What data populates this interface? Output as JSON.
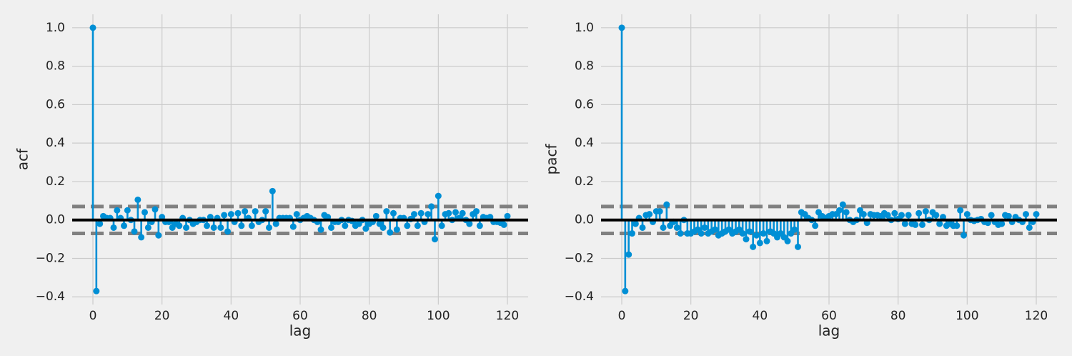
{
  "chart_data": [
    {
      "type": "stem",
      "ylabel": "acf",
      "xlabel": "lag",
      "color": "#008fd5",
      "grid": true,
      "bands": [
        -0.07,
        0.07
      ],
      "xlim": [
        -6,
        126
      ],
      "xticks": [
        0,
        20,
        40,
        60,
        80,
        100,
        120
      ],
      "ylim": [
        -0.44,
        1.07
      ],
      "yticks": [
        {
          "value": -0.4,
          "label": "−0.4"
        },
        {
          "value": -0.2,
          "label": "−0.2"
        },
        {
          "value": 0,
          "label": "0.0"
        },
        0.2,
        0.4,
        0.6,
        0.8,
        {
          "value": 1,
          "label": "1.0"
        }
      ],
      "x": [
        0,
        1,
        2,
        3,
        4,
        5,
        6,
        7,
        8,
        9,
        10,
        11,
        12,
        13,
        14,
        15,
        16,
        17,
        18,
        19,
        20,
        21,
        22,
        23,
        24,
        25,
        26,
        27,
        28,
        29,
        30,
        31,
        32,
        33,
        34,
        35,
        36,
        37,
        38,
        39,
        40,
        41,
        42,
        43,
        44,
        45,
        46,
        47,
        48,
        49,
        50,
        51,
        52,
        53,
        54,
        55,
        56,
        57,
        58,
        59,
        60,
        61,
        62,
        63,
        64,
        65,
        66,
        67,
        68,
        69,
        70,
        71,
        72,
        73,
        74,
        75,
        76,
        77,
        78,
        79,
        80,
        81,
        82,
        83,
        84,
        85,
        86,
        87,
        88,
        89,
        90,
        91,
        92,
        93,
        94,
        95,
        96,
        97,
        98,
        99,
        100,
        101,
        102,
        103,
        104,
        105,
        106,
        107,
        108,
        109,
        110,
        111,
        112,
        113,
        114,
        115,
        116,
        117,
        118,
        119,
        120
      ],
      "values": [
        1.0,
        -0.37,
        -0.02,
        0.02,
        0.01,
        0.01,
        -0.04,
        0.05,
        0.01,
        -0.03,
        0.05,
        0.0,
        -0.06,
        0.105,
        -0.09,
        0.04,
        -0.04,
        -0.01,
        0.055,
        -0.08,
        0.015,
        -0.01,
        -0.01,
        -0.04,
        -0.02,
        -0.03,
        0.01,
        -0.04,
        0.0,
        -0.02,
        -0.01,
        0.0,
        0.0,
        -0.03,
        0.015,
        -0.04,
        0.01,
        -0.04,
        0.025,
        -0.06,
        0.03,
        -0.01,
        0.035,
        -0.03,
        0.045,
        0.01,
        -0.03,
        0.045,
        -0.01,
        0.0,
        0.045,
        -0.04,
        0.15,
        -0.02,
        0.01,
        0.01,
        0.01,
        0.01,
        -0.035,
        0.03,
        0.0,
        0.01,
        0.02,
        0.01,
        0.0,
        -0.01,
        -0.05,
        0.025,
        0.015,
        -0.04,
        -0.01,
        -0.01,
        0.0,
        -0.03,
        0.0,
        -0.005,
        -0.03,
        -0.02,
        0.0,
        -0.045,
        -0.02,
        -0.01,
        0.02,
        -0.02,
        -0.04,
        0.045,
        -0.065,
        0.035,
        -0.05,
        0.01,
        0.01,
        -0.03,
        0.005,
        0.03,
        -0.03,
        0.035,
        -0.01,
        0.03,
        0.07,
        -0.1,
        0.125,
        -0.03,
        0.03,
        0.035,
        0.0,
        0.04,
        0.01,
        0.035,
        0.0,
        -0.02,
        0.03,
        0.045,
        -0.03,
        0.015,
        0.01,
        0.015,
        -0.01,
        -0.01,
        -0.015,
        -0.025,
        0.02
      ]
    },
    {
      "type": "stem",
      "ylabel": "pacf",
      "xlabel": "lag",
      "color": "#008fd5",
      "grid": true,
      "bands": [
        -0.07,
        0.07
      ],
      "xlim": [
        -6,
        126
      ],
      "xticks": [
        0,
        20,
        40,
        60,
        80,
        100,
        120
      ],
      "ylim": [
        -0.44,
        1.07
      ],
      "yticks": [
        {
          "value": -0.4,
          "label": "−0.4"
        },
        {
          "value": -0.2,
          "label": "−0.2"
        },
        {
          "value": 0,
          "label": "0.0"
        },
        0.2,
        0.4,
        0.6,
        0.8,
        {
          "value": 1,
          "label": "1.0"
        }
      ],
      "x": [
        0,
        1,
        2,
        3,
        4,
        5,
        6,
        7,
        8,
        9,
        10,
        11,
        12,
        13,
        14,
        15,
        16,
        17,
        18,
        19,
        20,
        21,
        22,
        23,
        24,
        25,
        26,
        27,
        28,
        29,
        30,
        31,
        32,
        33,
        34,
        35,
        36,
        37,
        38,
        39,
        40,
        41,
        42,
        43,
        44,
        45,
        46,
        47,
        48,
        49,
        50,
        51,
        52,
        53,
        54,
        55,
        56,
        57,
        58,
        59,
        60,
        61,
        62,
        63,
        64,
        65,
        66,
        67,
        68,
        69,
        70,
        71,
        72,
        73,
        74,
        75,
        76,
        77,
        78,
        79,
        80,
        81,
        82,
        83,
        84,
        85,
        86,
        87,
        88,
        89,
        90,
        91,
        92,
        93,
        94,
        95,
        96,
        97,
        98,
        99,
        100,
        101,
        102,
        103,
        104,
        105,
        106,
        107,
        108,
        109,
        110,
        111,
        112,
        113,
        114,
        115,
        116,
        117,
        118,
        119,
        120
      ],
      "values": [
        1.0,
        -0.37,
        -0.18,
        -0.07,
        -0.02,
        0.01,
        -0.04,
        0.025,
        0.03,
        -0.01,
        0.045,
        0.045,
        -0.04,
        0.08,
        -0.03,
        -0.01,
        -0.04,
        -0.07,
        0.0,
        -0.07,
        -0.07,
        -0.06,
        -0.05,
        -0.07,
        -0.04,
        -0.07,
        -0.06,
        -0.05,
        -0.08,
        -0.07,
        -0.06,
        -0.05,
        -0.07,
        -0.06,
        -0.05,
        -0.07,
        -0.1,
        -0.06,
        -0.14,
        -0.08,
        -0.12,
        -0.07,
        -0.11,
        -0.06,
        -0.07,
        -0.09,
        -0.07,
        -0.09,
        -0.11,
        -0.07,
        -0.05,
        -0.14,
        0.04,
        0.03,
        0.01,
        0.0,
        -0.03,
        0.04,
        0.02,
        0.01,
        0.02,
        0.03,
        0.03,
        0.05,
        0.08,
        0.04,
        0.0,
        -0.01,
        0.0,
        0.05,
        0.03,
        -0.015,
        0.03,
        0.025,
        0.025,
        0.02,
        0.035,
        0.025,
        0.0,
        0.035,
        0.005,
        0.025,
        -0.02,
        0.025,
        -0.02,
        -0.025,
        0.035,
        -0.025,
        0.045,
        0.0,
        0.04,
        0.025,
        -0.02,
        0.015,
        -0.03,
        -0.02,
        -0.03,
        -0.03,
        0.05,
        -0.08,
        0.03,
        0.0,
        -0.005,
        0.0,
        0.005,
        -0.01,
        -0.015,
        0.025,
        -0.01,
        -0.025,
        -0.02,
        0.025,
        0.02,
        -0.01,
        0.015,
        0.0,
        -0.01,
        0.03,
        -0.04,
        -0.01,
        0.03
      ]
    }
  ]
}
